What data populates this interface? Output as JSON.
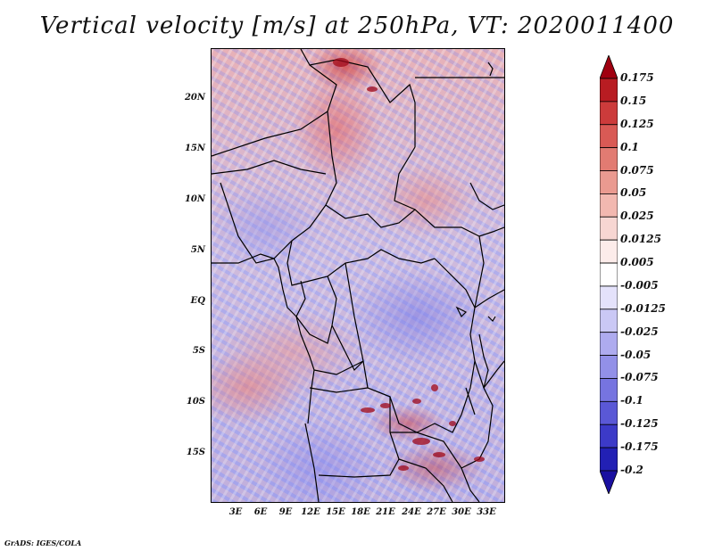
{
  "title": "Vertical velocity [m/s] at 250hPa, VT: 2020011400",
  "map": {
    "lat_labels": [
      "20N",
      "15N",
      "10N",
      "5N",
      "EQ",
      "5S",
      "10S",
      "15S"
    ],
    "lon_labels": [
      "3E",
      "6E",
      "9E",
      "12E",
      "15E",
      "18E",
      "21E",
      "24E",
      "27E",
      "30E",
      "33E"
    ]
  },
  "colorbar": {
    "levels": [
      "0.175",
      "0.15",
      "0.125",
      "0.1",
      "0.075",
      "0.05",
      "0.025",
      "0.0125",
      "0.005",
      "-0.005",
      "-0.0125",
      "-0.025",
      "-0.05",
      "-0.075",
      "-0.1",
      "-0.125",
      "-0.175",
      "-0.2"
    ],
    "colors": [
      "#a00010",
      "#b81c22",
      "#cc3b3b",
      "#d95a55",
      "#e27b72",
      "#ea9a90",
      "#f2b8b0",
      "#f7d6d2",
      "#fcecea",
      "#ffffff",
      "#e4e2fb",
      "#cac8f5",
      "#aeabef",
      "#9290e8",
      "#7674e0",
      "#5a58d6",
      "#3c3ac8",
      "#2220b4",
      "#1a10a0"
    ]
  },
  "credit": "GrADS: IGES/COLA"
}
